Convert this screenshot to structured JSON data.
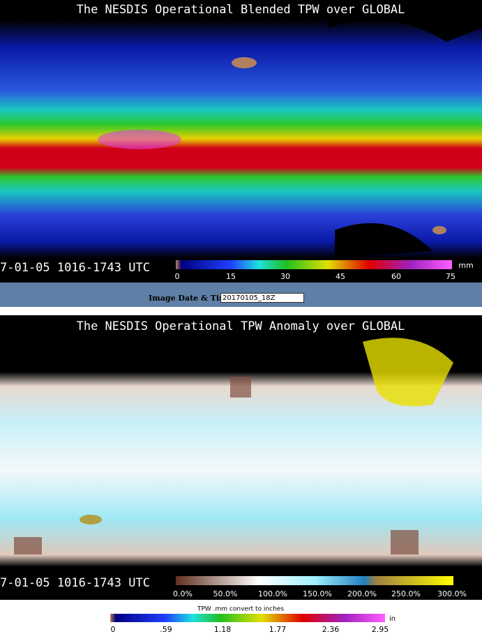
{
  "top_panel": {
    "title": "The NESDIS Operational Blended TPW over GLOBAL",
    "timestamp": "7-01-05  1016-1743  UTC",
    "scale_labels": [
      "0",
      "15",
      "30",
      "45",
      "60",
      "75"
    ],
    "unit": "mm"
  },
  "date_form": {
    "label": "Image Date & Time:",
    "value": "20170105_18Z"
  },
  "bottom_panel": {
    "title": "The NESDIS  Operational  TPW Anomaly over GLOBAL",
    "timestamp": "7-01-05  1016-1743  UTC",
    "scale_labels": [
      "0.0%",
      "50.0%",
      "100.0%",
      "150.0%",
      "200.0%",
      "250.0%",
      "300.0%"
    ]
  },
  "inch_scale": {
    "caption": "TPW .mm convert to inches",
    "labels": [
      "0",
      ".59",
      "1.18",
      "1.77",
      "2.36",
      "2.95"
    ],
    "unit": "in"
  }
}
